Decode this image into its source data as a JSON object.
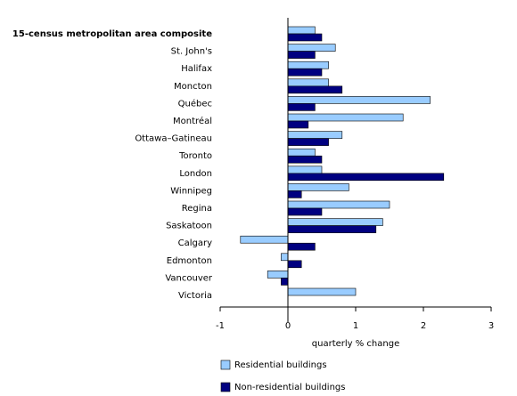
{
  "chart_data": {
    "type": "hbar",
    "categories": [
      "15-census metropolitan area composite",
      "St. John's",
      "Halifax",
      "Moncton",
      "Québec",
      "Montréal",
      "Ottawa–Gatineau",
      "Toronto",
      "London",
      "Winnipeg",
      "Regina",
      "Saskatoon",
      "Calgary",
      "Edmonton",
      "Vancouver",
      "Victoria"
    ],
    "series": [
      {
        "name": "Residential buildings",
        "color": "#99ccff",
        "values": [
          0.4,
          0.7,
          0.6,
          0.6,
          2.1,
          1.7,
          0.8,
          0.4,
          0.5,
          0.9,
          1.5,
          1.4,
          -0.7,
          -0.1,
          -0.3,
          1.0
        ]
      },
      {
        "name": "Non-residential buildings",
        "color": "#000080",
        "values": [
          0.5,
          0.4,
          0.5,
          0.8,
          0.4,
          0.3,
          0.6,
          0.5,
          2.3,
          0.2,
          0.5,
          1.3,
          0.4,
          0.2,
          -0.1,
          0
        ]
      }
    ],
    "xlabel": "quarterly % change",
    "xlim": [
      -1,
      3
    ],
    "xticks": [
      -1,
      0,
      1,
      2,
      3
    ]
  }
}
